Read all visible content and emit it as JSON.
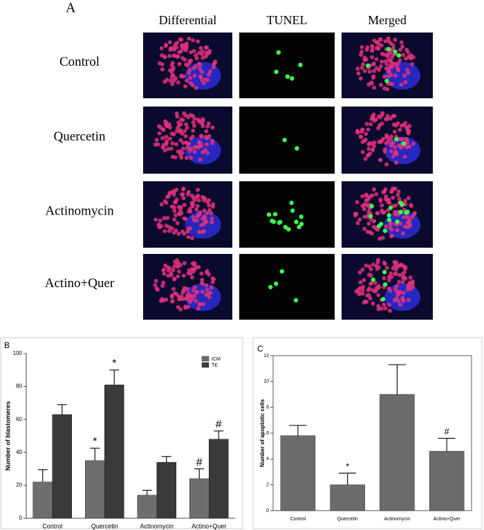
{
  "panel_a": {
    "label": "A",
    "columns": [
      "Differential",
      "TUNEL",
      "Merged"
    ],
    "rows": [
      "Control",
      "Quercetin",
      "Actinomycin",
      "Actino+Quer"
    ]
  },
  "chart_data": [
    {
      "type": "bar",
      "panel": "B",
      "y_label": "Number of blastomeres",
      "categories": [
        "Control",
        "Quercetin",
        "Actinomycin",
        "Actino+Quer"
      ],
      "series": [
        {
          "name": "ICM",
          "color": "#6e6e6e",
          "values": [
            22,
            35,
            14,
            24
          ],
          "errors": [
            7.5,
            7.5,
            3,
            6
          ],
          "annotations": [
            null,
            "*",
            null,
            "#"
          ]
        },
        {
          "name": "TE",
          "color": "#3a3a3a",
          "values": [
            63,
            81,
            34,
            48
          ],
          "errors": [
            6,
            9,
            3.5,
            5
          ],
          "annotations": [
            null,
            "*",
            null,
            "#"
          ]
        }
      ],
      "ylim": [
        0,
        100
      ],
      "yticks": [
        0,
        20,
        40,
        60,
        80,
        100
      ],
      "legend": "upper right"
    },
    {
      "type": "bar",
      "panel": "C",
      "y_label": "Number of apoptotic cells",
      "categories": [
        "Control",
        "Quercetin",
        "Actinomycin",
        "Actino+Quer"
      ],
      "values": [
        5.8,
        2.0,
        9.0,
        4.6
      ],
      "errors": [
        0.8,
        0.9,
        2.3,
        1.0
      ],
      "annotations": [
        null,
        "*",
        null,
        "#"
      ],
      "color": "#6b6b6b",
      "ylim": [
        0,
        12
      ],
      "yticks": [
        0,
        2,
        4,
        6,
        8,
        10,
        12
      ]
    }
  ]
}
